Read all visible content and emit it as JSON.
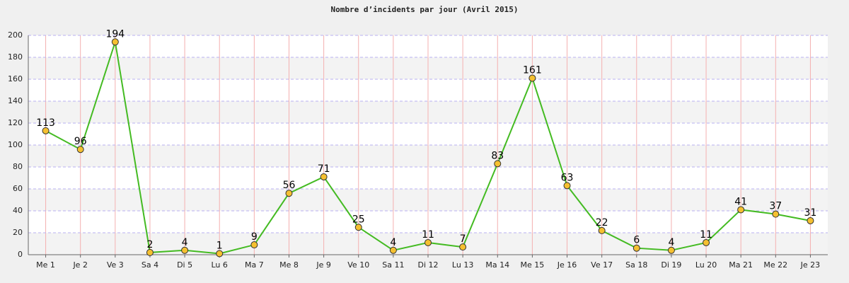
{
  "chart_data": {
    "type": "line",
    "title": "Nombre d’incidents par jour (Avril 2015)",
    "categories": [
      "Me 1",
      "Je 2",
      "Ve 3",
      "Sa 4",
      "Di 5",
      "Lu 6",
      "Ma 7",
      "Me 8",
      "Je 9",
      "Ve 10",
      "Sa 11",
      "Di 12",
      "Lu 13",
      "Ma 14",
      "Me 15",
      "Je 16",
      "Ve 17",
      "Sa 18",
      "Di 19",
      "Lu 20",
      "Ma 21",
      "Me 22",
      "Je 23"
    ],
    "values": [
      113,
      96,
      194,
      2,
      4,
      1,
      9,
      56,
      71,
      25,
      4,
      11,
      7,
      83,
      161,
      63,
      22,
      6,
      4,
      11,
      41,
      37,
      31
    ],
    "color": "#44bb22",
    "marker_color": "#f5c030",
    "ylim": [
      0,
      200
    ],
    "yticks": [
      0,
      20,
      40,
      60,
      80,
      100,
      120,
      140,
      160,
      180,
      200
    ],
    "grid": true
  }
}
